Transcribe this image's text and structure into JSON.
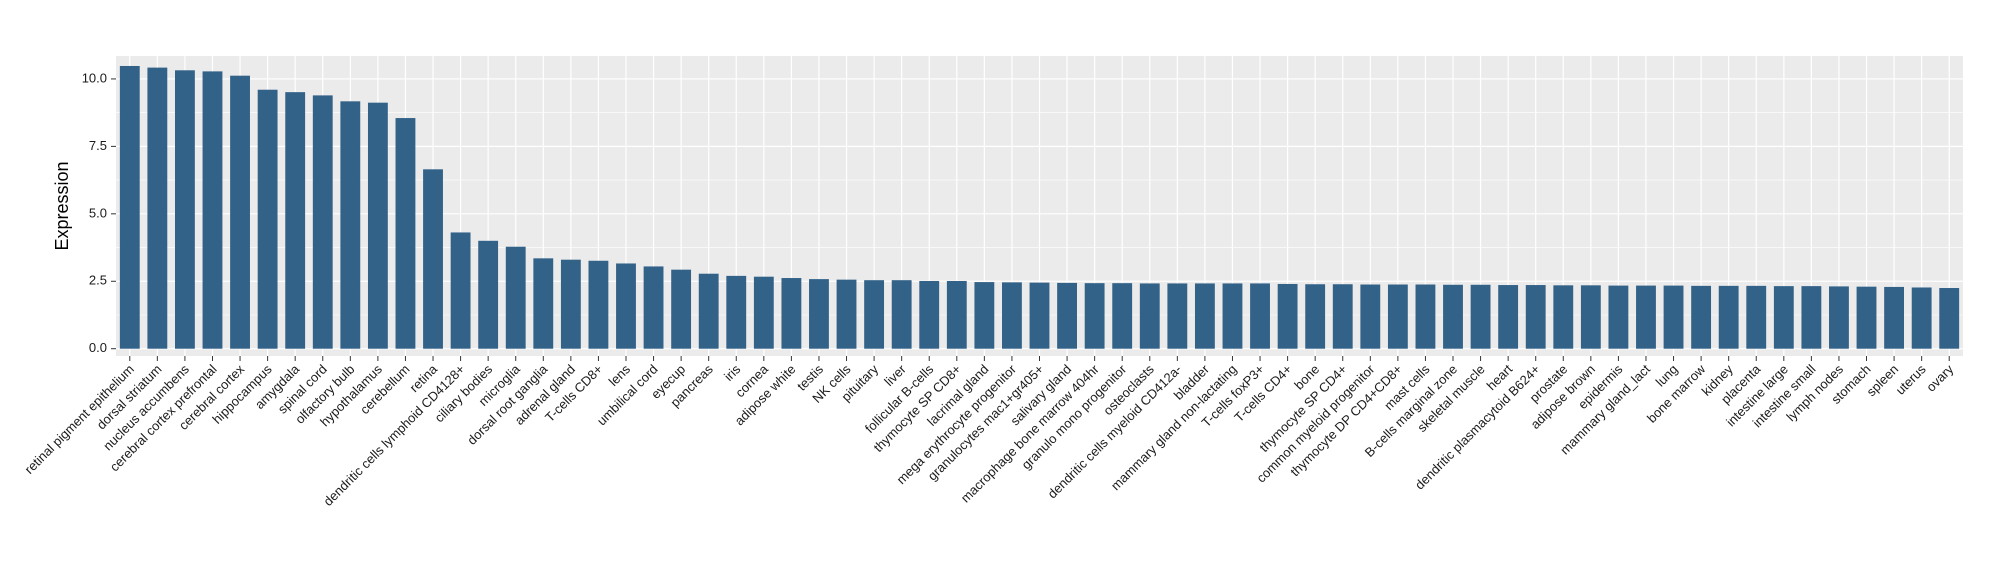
{
  "chart_data": {
    "type": "bar",
    "xlabel": "",
    "ylabel": "Expression",
    "ylim": [
      -0.27,
      10.85
    ],
    "yticks": [
      "0.0",
      "2.5",
      "5.0",
      "7.5",
      "10.0"
    ],
    "grid": true,
    "legend": "none",
    "categories": [
      "retinal pigment epithelium",
      "dorsal striatum",
      "nucleus accumbens",
      "cerebral cortex prefrontal",
      "cerebral cortex",
      "hippocampus",
      "amygdala",
      "spinal cord",
      "olfactory bulb",
      "hypothalamus",
      "cerebellum",
      "retina",
      "dendritic cells lymphoid CD4128+",
      "ciliary bodies",
      "microglia",
      "dorsal root ganglia",
      "adrenal gland",
      "T-cells CD8+",
      "lens",
      "umbilical cord",
      "eyecup",
      "pancreas",
      "iris",
      "cornea",
      "adipose white",
      "testis",
      "NK cells",
      "pituitary",
      "liver",
      "follicular B-cells",
      "thymocyte SP CD8+",
      "lacrimal gland",
      "mega erythrocyte progenitor",
      "granulocytes mac1+gr405+",
      "salivary gland",
      "macrophage bone marrow 404hr",
      "granulo mono progenitor",
      "osteoclasts",
      "dendritic cells myeloid CD412a-",
      "bladder",
      "mammary gland non-lactating",
      "T-cells foxP3+",
      "T-cells CD4+",
      "bone",
      "thymocyte SP CD4+",
      "common myeloid progenitor",
      "thymocyte DP CD4+CD8+",
      "mast cells",
      "B-cells marginal zone",
      "skeletal muscle",
      "heart",
      "dendritic plasmacytoid B624+",
      "prostate",
      "adipose brown",
      "epidermis",
      "mammary gland_lact",
      "lung",
      "bone marrow",
      "kidney",
      "placenta",
      "intestine large",
      "intestine small",
      "lymph nodes",
      "stomach",
      "spleen",
      "uterus",
      "ovary"
    ],
    "values": [
      10.48,
      10.42,
      10.32,
      10.28,
      10.12,
      9.6,
      9.51,
      9.39,
      9.17,
      9.12,
      8.55,
      6.65,
      4.31,
      4.0,
      3.78,
      3.35,
      3.3,
      3.26,
      3.16,
      3.05,
      2.93,
      2.78,
      2.7,
      2.67,
      2.62,
      2.58,
      2.56,
      2.54,
      2.54,
      2.51,
      2.51,
      2.47,
      2.46,
      2.45,
      2.44,
      2.43,
      2.43,
      2.42,
      2.42,
      2.42,
      2.42,
      2.42,
      2.4,
      2.39,
      2.39,
      2.38,
      2.38,
      2.38,
      2.37,
      2.37,
      2.36,
      2.36,
      2.35,
      2.35,
      2.34,
      2.34,
      2.34,
      2.33,
      2.33,
      2.33,
      2.32,
      2.32,
      2.31,
      2.3,
      2.29,
      2.27,
      2.25
    ],
    "colors": {
      "bar": "#336289",
      "panel": "#ebebeb",
      "grid": "#ffffff",
      "tick_text": "#1a1a1a",
      "tick_mark": "#333333"
    }
  }
}
